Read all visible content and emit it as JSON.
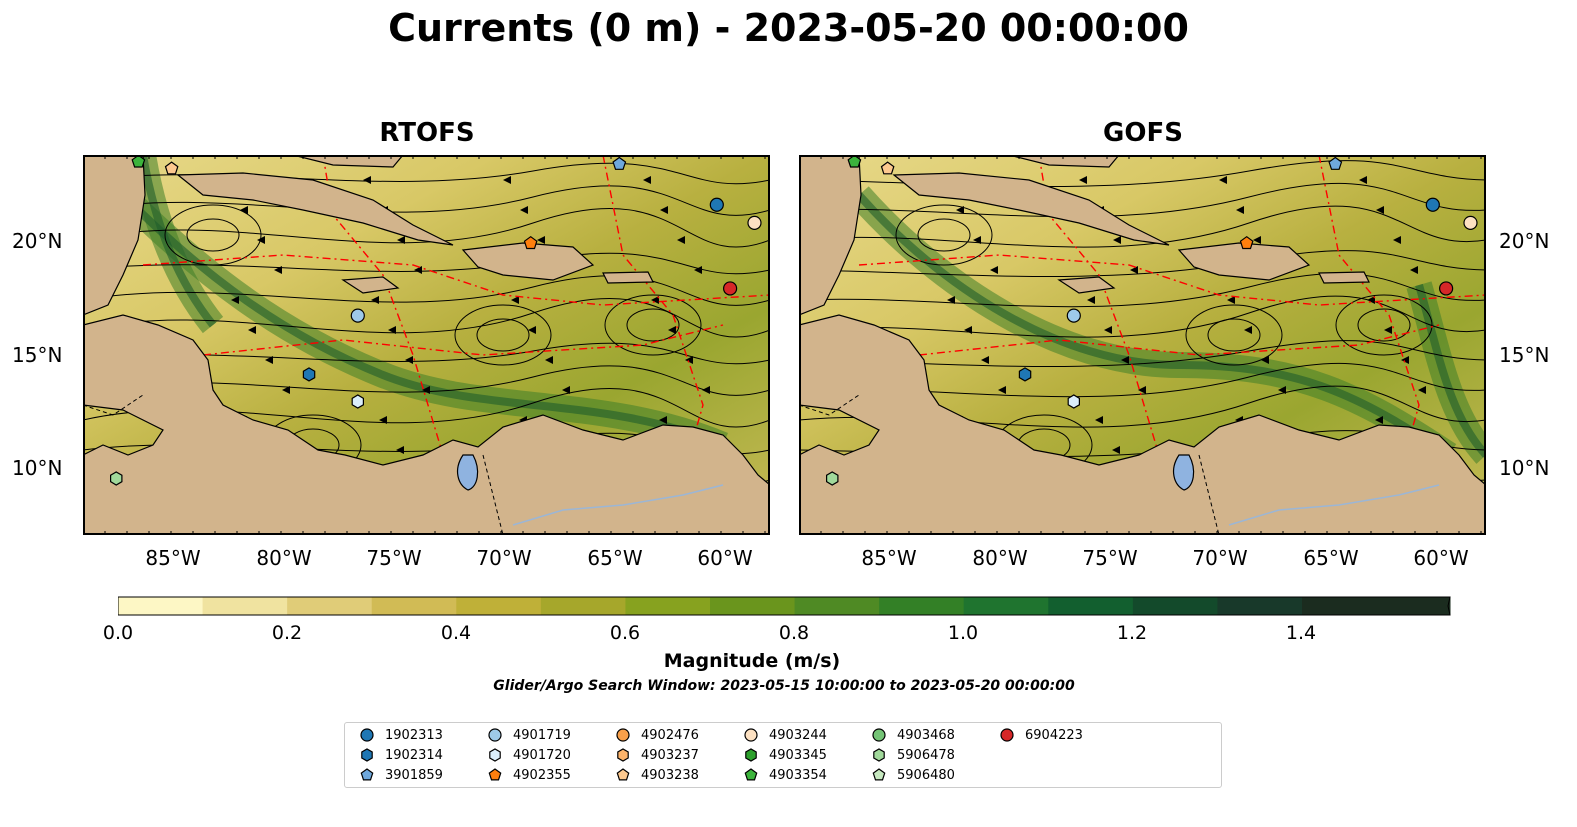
{
  "figure": {
    "title": "Currents (0 m) - 2023-05-20 00:00:00",
    "panels": [
      {
        "title": "RTOFS"
      },
      {
        "title": "GOFS"
      }
    ],
    "lat_labels": [
      "20°N",
      "15°N",
      "10°N"
    ],
    "lon_labels": [
      "85°W",
      "80°W",
      "75°W",
      "70°W",
      "65°W",
      "60°W"
    ],
    "colorbar": {
      "label": "Magnitude (m/s)",
      "ticks": [
        "0.0",
        "0.2",
        "0.4",
        "0.6",
        "0.8",
        "1.0",
        "1.2",
        "1.4"
      ],
      "colors": [
        "#fdf7c5",
        "#f0e3a0",
        "#e0cc78",
        "#d1bb55",
        "#bfb038",
        "#a6a72b",
        "#87a21f",
        "#6a951d",
        "#4f8a24",
        "#338026",
        "#1f742f",
        "#125f2f",
        "#134a2b",
        "#18392a",
        "#1b2c1f"
      ],
      "extend": "max"
    },
    "subtitle": "Glider/Argo Search Window: 2023-05-15 10:00:00 to 2023-05-20 00:00:00"
  },
  "legend": [
    {
      "id": "1902313",
      "color": "#1f77b4",
      "shape": "circle"
    },
    {
      "id": "1902314",
      "color": "#1f77b4",
      "shape": "hexagon"
    },
    {
      "id": "3901859",
      "color": "#6fa8dc",
      "shape": "pentagon"
    },
    {
      "id": "4901719",
      "color": "#9ecae9",
      "shape": "circle"
    },
    {
      "id": "4901720",
      "color": "#dbeefb",
      "shape": "hexagon"
    },
    {
      "id": "4902355",
      "color": "#ff7f0e",
      "shape": "pentagon"
    },
    {
      "id": "4902476",
      "color": "#f9a04a",
      "shape": "circle"
    },
    {
      "id": "4903237",
      "color": "#fdb46b",
      "shape": "hexagon"
    },
    {
      "id": "4903238",
      "color": "#fdc98f",
      "shape": "pentagon"
    },
    {
      "id": "4903244",
      "color": "#fde1c2",
      "shape": "circle"
    },
    {
      "id": "4903345",
      "color": "#2ca02c",
      "shape": "hexagon"
    },
    {
      "id": "4903354",
      "color": "#3cb43c",
      "shape": "pentagon"
    },
    {
      "id": "4903468",
      "color": "#74c476",
      "shape": "circle"
    },
    {
      "id": "5906478",
      "color": "#a1d99b",
      "shape": "hexagon"
    },
    {
      "id": "5906480",
      "color": "#c7e9c0",
      "shape": "pentagon"
    },
    {
      "id": "6904223",
      "color": "#d62728",
      "shape": "circle"
    }
  ],
  "platforms": [
    {
      "id": "1902313",
      "lon": -60.6,
      "lat": 21.6
    },
    {
      "id": "3901859",
      "lon": -65.0,
      "lat": 23.4
    },
    {
      "id": "4901719",
      "lon": -76.8,
      "lat": 16.7
    },
    {
      "id": "1902314",
      "lon": -79.0,
      "lat": 14.1
    },
    {
      "id": "4901720",
      "lon": -76.8,
      "lat": 12.9
    },
    {
      "id": "4902355",
      "lon": -69.0,
      "lat": 19.9
    },
    {
      "id": "4903244",
      "lon": -58.9,
      "lat": 20.8
    },
    {
      "id": "6904223",
      "lon": -60.0,
      "lat": 17.9
    },
    {
      "id": "4903354",
      "lon": -86.7,
      "lat": 23.5
    },
    {
      "id": "4903238",
      "lon": -85.2,
      "lat": 23.2
    },
    {
      "id": "5906478",
      "lon": -87.7,
      "lat": 9.5
    }
  ]
}
